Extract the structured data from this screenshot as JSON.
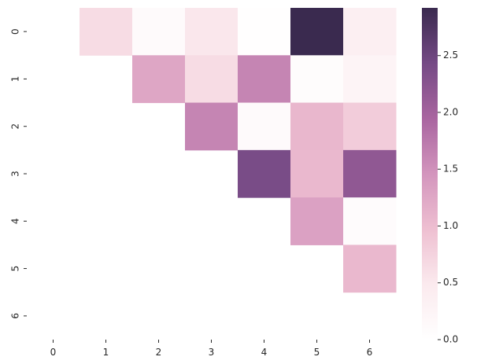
{
  "chart_data": {
    "type": "heatmap",
    "title": "",
    "xlabel": "",
    "ylabel": "",
    "x_categories": [
      "0",
      "1",
      "2",
      "3",
      "4",
      "5",
      "6"
    ],
    "y_categories": [
      "0",
      "1",
      "2",
      "3",
      "4",
      "5",
      "6"
    ],
    "mask": "lower-triangle-and-diagonal",
    "values": [
      [
        null,
        0.65,
        0.12,
        0.52,
        0.02,
        2.92,
        0.38
      ],
      [
        null,
        null,
        1.26,
        0.65,
        1.62,
        0.08,
        0.26
      ],
      [
        null,
        null,
        null,
        1.62,
        0.12,
        1.07,
        0.83
      ],
      [
        null,
        null,
        null,
        null,
        2.4,
        1.05,
        2.18
      ],
      [
        null,
        null,
        null,
        null,
        null,
        1.32,
        0.1
      ],
      [
        null,
        null,
        null,
        null,
        null,
        null,
        1.05
      ],
      [
        null,
        null,
        null,
        null,
        null,
        null,
        null
      ]
    ],
    "colorbar": {
      "min": 0.0,
      "max": 2.92,
      "ticks": [
        0.0,
        0.5,
        1.0,
        1.5,
        2.0,
        2.5
      ],
      "tick_labels": [
        "0.0",
        "0.5",
        "1.0",
        "1.5",
        "2.0",
        "2.5"
      ],
      "colormap_stops": [
        "#ffffff",
        "#fbeaee",
        "#eebfd1",
        "#d395bd",
        "#a965a0",
        "#754a85",
        "#3a2a4f"
      ]
    }
  }
}
